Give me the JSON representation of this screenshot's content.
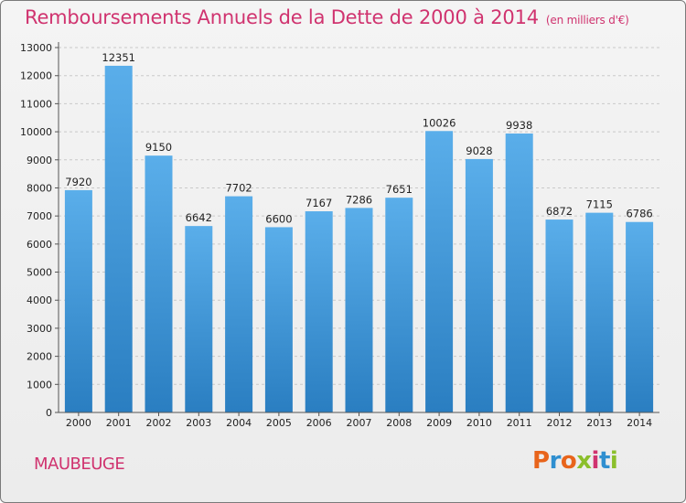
{
  "header": {
    "title": "Remboursements Annuels de la Dette de 2000 à 2014",
    "unit": "(en milliers d'€)"
  },
  "footer": {
    "city": "MAUBEUGE",
    "logo_text": "Proxiti",
    "logo_colors": [
      "#e8641b",
      "#2f8fd0",
      "#e8641b",
      "#8bbf2b",
      "#d0336f",
      "#2f8fd0",
      "#8bbf2b"
    ]
  },
  "chart_data": {
    "type": "bar",
    "title": "Remboursements Annuels de la Dette de 2000 à 2014",
    "xlabel": "",
    "ylabel": "",
    "categories": [
      "2000",
      "2001",
      "2002",
      "2003",
      "2004",
      "2005",
      "2006",
      "2007",
      "2008",
      "2009",
      "2010",
      "2011",
      "2012",
      "2013",
      "2014"
    ],
    "values": [
      7920,
      12351,
      9150,
      6642,
      7702,
      6600,
      7167,
      7286,
      7651,
      10026,
      9028,
      9938,
      6872,
      7115,
      6786
    ],
    "ylim": [
      0,
      13000
    ],
    "yticks": [
      0,
      1000,
      2000,
      3000,
      4000,
      5000,
      6000,
      7000,
      8000,
      9000,
      10000,
      11000,
      12000,
      13000
    ],
    "grid": true,
    "bar_color_top": "#5aaeea",
    "bar_color_bottom": "#2a7ec1"
  }
}
